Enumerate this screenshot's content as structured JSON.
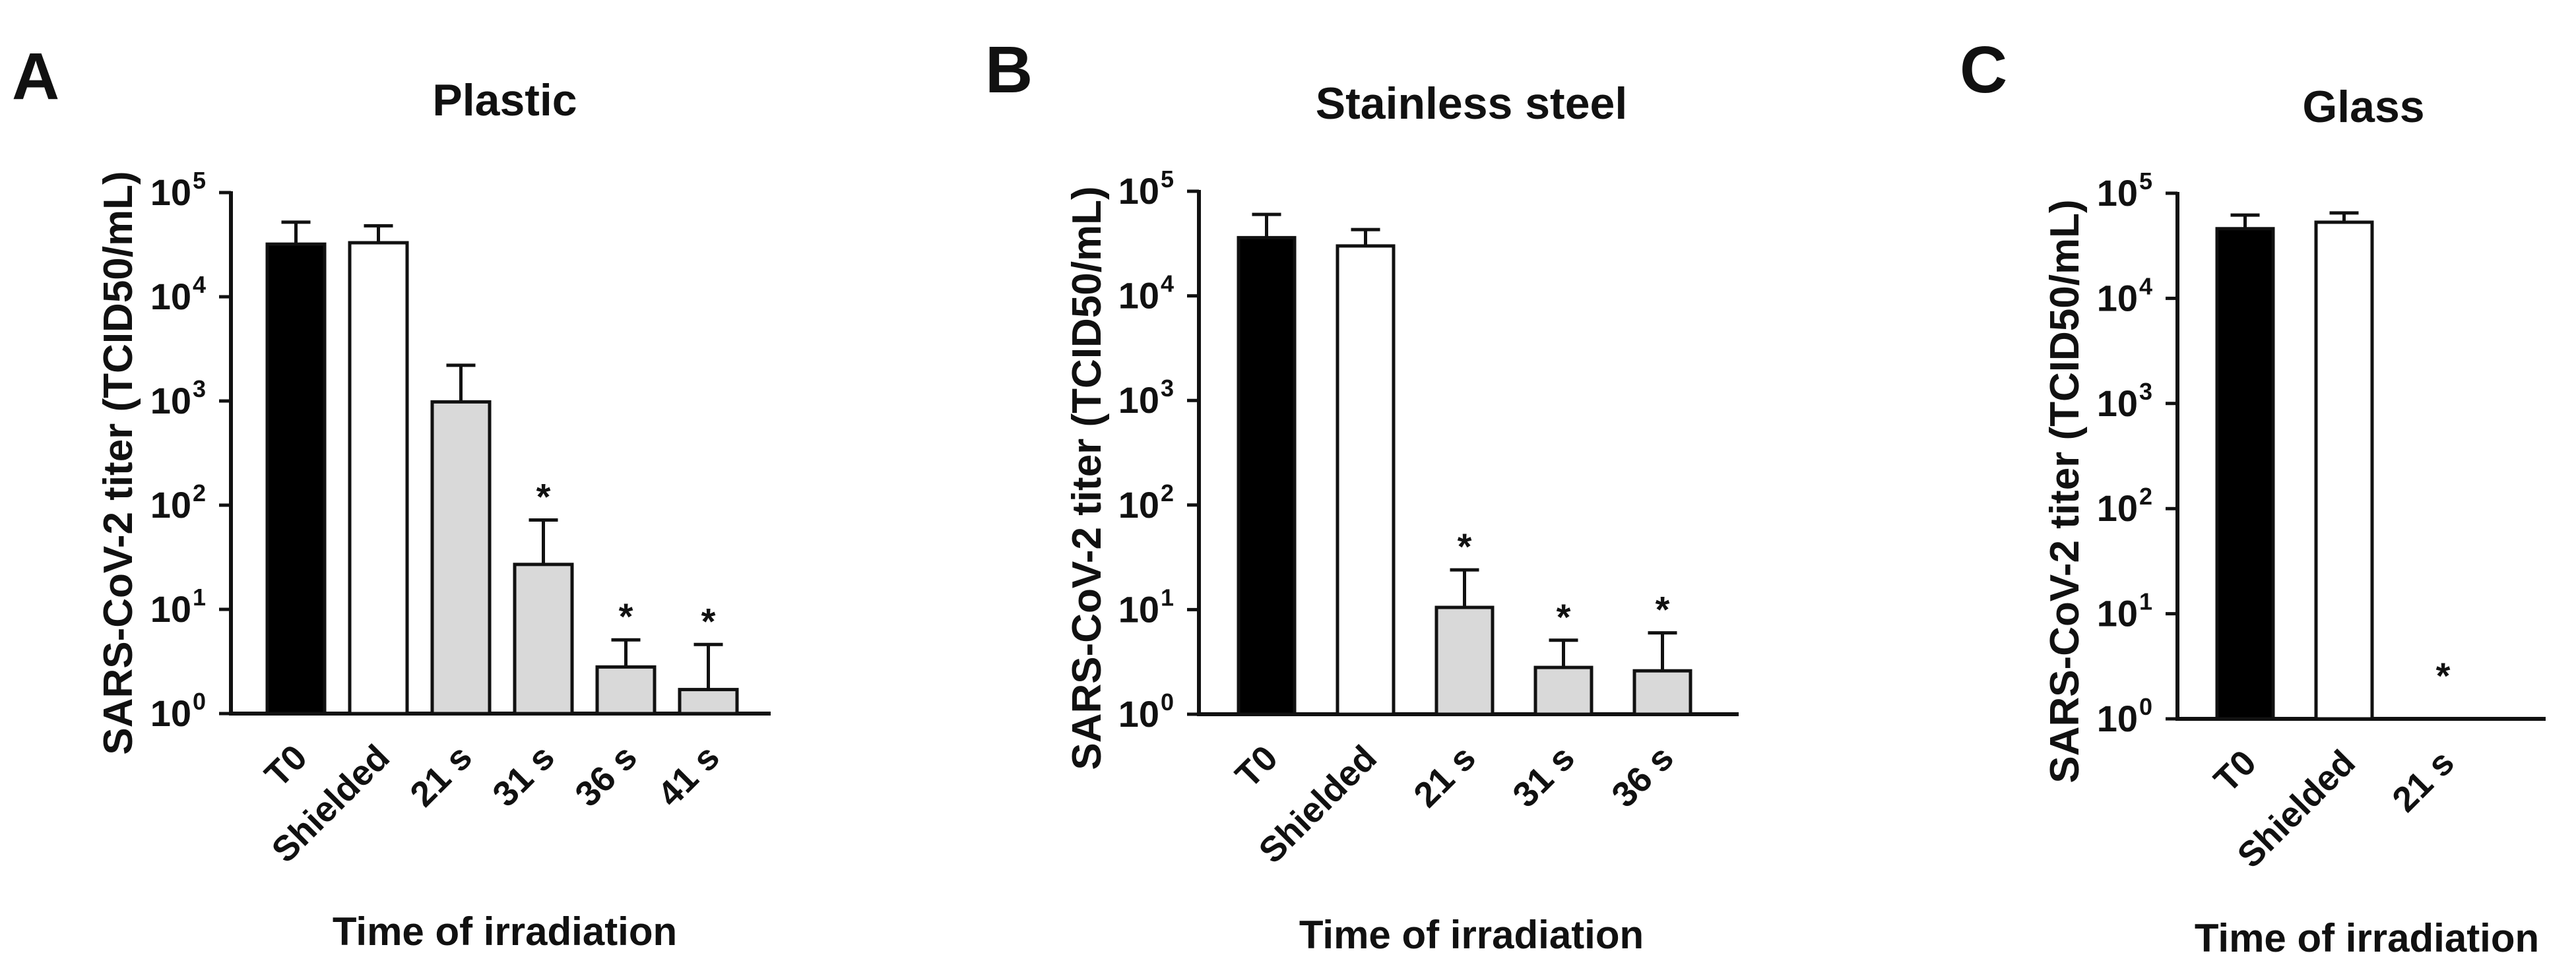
{
  "chart_data": [
    {
      "type": "bar",
      "panel": "A",
      "title": "Plastic",
      "xlabel": "Time of irradiation",
      "ylabel": "SARS-CoV-2 titer (TCID50/mL)",
      "yscale": "log10",
      "ylim": [
        1,
        100000
      ],
      "ytick_labels": [
        {
          "base": "10",
          "exp": "0"
        },
        {
          "base": "10",
          "exp": "1"
        },
        {
          "base": "10",
          "exp": "2"
        },
        {
          "base": "10",
          "exp": "3"
        },
        {
          "base": "10",
          "exp": "4"
        },
        {
          "base": "10",
          "exp": "5"
        }
      ],
      "categories": [
        "T0",
        "Shielded",
        "21 s",
        "31 s",
        "36 s",
        "41 s"
      ],
      "values": [
        32000,
        33000,
        980,
        27,
        2.8,
        1.7
      ],
      "error_upper": [
        52000,
        48000,
        2200,
        72,
        5.1,
        4.6
      ],
      "fills": [
        "#000000",
        "#ffffff",
        "#d9d9d9",
        "#d9d9d9",
        "#d9d9d9",
        "#d9d9d9"
      ],
      "annotations": [
        "",
        "",
        "",
        "*",
        "*",
        "*"
      ]
    },
    {
      "type": "bar",
      "panel": "B",
      "title": "Stainless steel",
      "xlabel": "Time of irradiation",
      "ylabel": "SARS-CoV-2 titer (TCID50/mL)",
      "yscale": "log10",
      "ylim": [
        1,
        100000
      ],
      "ytick_labels": [
        {
          "base": "10",
          "exp": "0"
        },
        {
          "base": "10",
          "exp": "1"
        },
        {
          "base": "10",
          "exp": "2"
        },
        {
          "base": "10",
          "exp": "3"
        },
        {
          "base": "10",
          "exp": "4"
        },
        {
          "base": "10",
          "exp": "5"
        }
      ],
      "categories": [
        "T0",
        "Shielded",
        "21 s",
        "31 s",
        "36 s"
      ],
      "values": [
        36000,
        30000,
        10.5,
        2.8,
        2.6
      ],
      "error_upper": [
        60000,
        43000,
        24,
        5.1,
        6.0
      ],
      "fills": [
        "#000000",
        "#ffffff",
        "#d9d9d9",
        "#d9d9d9",
        "#d9d9d9"
      ],
      "annotations": [
        "",
        "",
        "*",
        "*",
        "*"
      ]
    },
    {
      "type": "bar",
      "panel": "C",
      "title": "Glass",
      "xlabel": "Time of irradiation",
      "ylabel": "SARS-CoV-2 titer (TCID50/mL)",
      "yscale": "log10",
      "ylim": [
        1,
        100000
      ],
      "ytick_labels": [
        {
          "base": "10",
          "exp": "0"
        },
        {
          "base": "10",
          "exp": "1"
        },
        {
          "base": "10",
          "exp": "2"
        },
        {
          "base": "10",
          "exp": "3"
        },
        {
          "base": "10",
          "exp": "4"
        },
        {
          "base": "10",
          "exp": "5"
        }
      ],
      "categories": [
        "T0",
        "Shielded",
        "21 s"
      ],
      "values": [
        46000,
        53000,
        1
      ],
      "error_upper": [
        62000,
        65000,
        1
      ],
      "fills": [
        "#000000",
        "#ffffff",
        "#d9d9d9"
      ],
      "annotations": [
        "",
        "",
        "*"
      ]
    }
  ]
}
